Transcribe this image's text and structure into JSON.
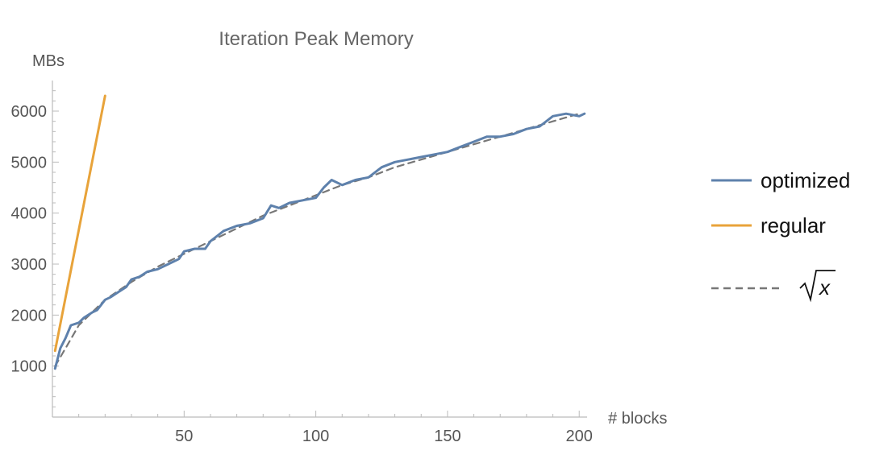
{
  "chart_data": {
    "type": "line",
    "title": "Iteration Peak Memory",
    "ylabel": "MBs",
    "xlabel": "# blocks",
    "xlim": [
      0,
      203
    ],
    "ylim": [
      0,
      6600
    ],
    "xticks": [
      50,
      100,
      150,
      200
    ],
    "yticks": [
      1000,
      2000,
      3000,
      4000,
      5000,
      6000
    ],
    "grid": false,
    "legend_position": "right",
    "series": [
      {
        "name": "optimized",
        "color": "#5e81ac",
        "style": "solid",
        "x": [
          1,
          3,
          5,
          7,
          10,
          12,
          15,
          17,
          20,
          22,
          25,
          28,
          30,
          33,
          36,
          40,
          44,
          48,
          50,
          54,
          58,
          60,
          65,
          70,
          75,
          80,
          83,
          86,
          90,
          95,
          100,
          103,
          106,
          110,
          115,
          120,
          125,
          130,
          135,
          140,
          145,
          150,
          155,
          160,
          165,
          170,
          175,
          180,
          185,
          190,
          195,
          200,
          202
        ],
        "y": [
          950,
          1350,
          1550,
          1800,
          1850,
          1950,
          2050,
          2100,
          2300,
          2350,
          2450,
          2550,
          2700,
          2750,
          2850,
          2900,
          3000,
          3100,
          3250,
          3300,
          3300,
          3450,
          3650,
          3750,
          3800,
          3900,
          4150,
          4100,
          4200,
          4250,
          4300,
          4500,
          4650,
          4550,
          4650,
          4700,
          4900,
          5000,
          5050,
          5100,
          5150,
          5200,
          5300,
          5400,
          5500,
          5500,
          5550,
          5650,
          5700,
          5900,
          5950,
          5900,
          5950
        ]
      },
      {
        "name": "regular",
        "color": "#e8a33a",
        "style": "solid",
        "x": [
          1,
          20
        ],
        "y": [
          1300,
          6300
        ]
      },
      {
        "name": "√x",
        "color": "#777777",
        "style": "dashed",
        "x": [
          1,
          5,
          10,
          20,
          30,
          40,
          50,
          60,
          70,
          80,
          90,
          100,
          110,
          120,
          130,
          140,
          150,
          160,
          170,
          180,
          190,
          200
        ],
        "y": [
          1000,
          1350,
          1800,
          2300,
          2650,
          2950,
          3200,
          3450,
          3700,
          3950,
          4150,
          4350,
          4550,
          4700,
          4900,
          5050,
          5200,
          5350,
          5500,
          5650,
          5800,
          5950
        ]
      }
    ]
  }
}
